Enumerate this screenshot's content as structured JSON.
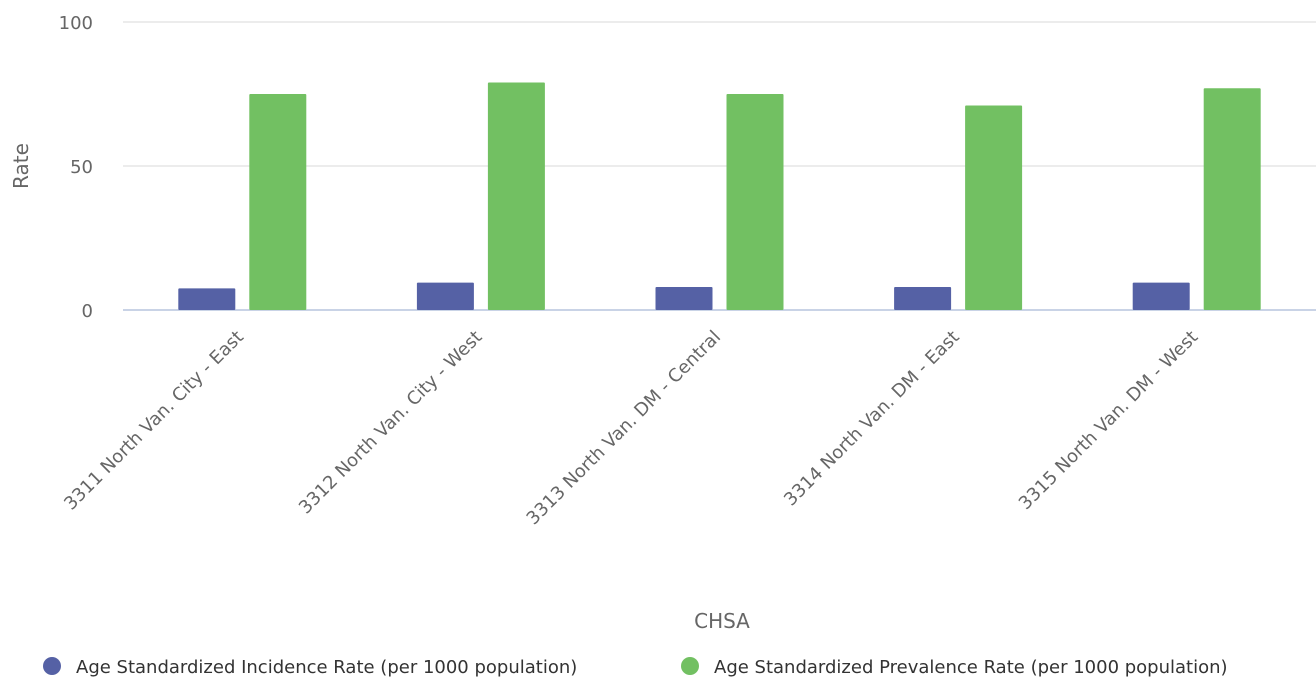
{
  "chart_data": {
    "type": "bar",
    "title": "",
    "xlabel": "CHSA",
    "ylabel": "Rate",
    "ylim": [
      0,
      100
    ],
    "yticks": [
      0,
      50,
      100
    ],
    "grid": true,
    "legend_position": "bottom",
    "categories": [
      "3311 North Van. City - East",
      "3312 North Van. City - West",
      "3313 North Van. DM - Central",
      "3314 North Van. DM - East",
      "3315 North Van. DM - West"
    ],
    "series": [
      {
        "name": "Age Standardized Incidence Rate (per 1000 population)",
        "color": "#5561a5",
        "values": [
          7.5,
          9.5,
          8.0,
          8.0,
          9.5
        ]
      },
      {
        "name": "Age Standardized Prevalence Rate (per 1000 population)",
        "color": "#72c062",
        "values": [
          75,
          79,
          75,
          71,
          77
        ]
      }
    ]
  }
}
